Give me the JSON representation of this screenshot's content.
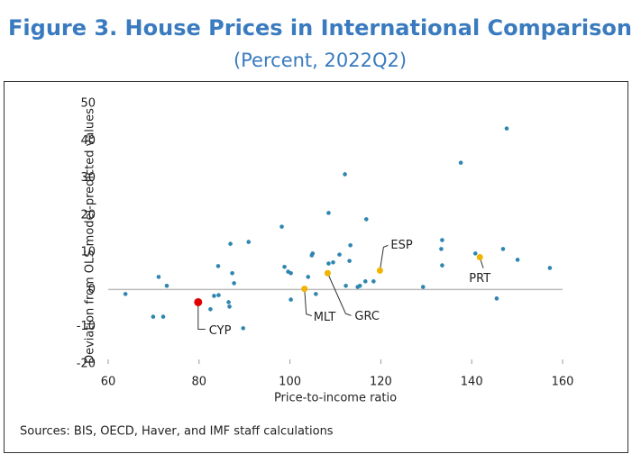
{
  "chart_data": {
    "type": "scatter",
    "title": "Figure 3. House Prices in International Comparison",
    "subtitle": "(Percent, 2022Q2)",
    "xlabel": "Price-to-income ratio",
    "ylabel": "Deviation from OLS model-predicted values",
    "source": "Sources: BIS, OECD, Haver, and IMF staff calculations",
    "xlim": [
      60,
      160
    ],
    "xticks": [
      60,
      80,
      100,
      120,
      140,
      160
    ],
    "ylim": [
      -20,
      50
    ],
    "yticks": [
      -20,
      -10,
      0,
      10,
      20,
      30,
      40,
      50
    ],
    "series": [
      {
        "color": "#2e86b0",
        "x": [
          63.8,
          69.9,
          71.1,
          72.1,
          72.9,
          82.5,
          83.3,
          84.3,
          84.2,
          86.9,
          90.9,
          86.5,
          86.7,
          87.3,
          87.7,
          89.7,
          98.2,
          98.8,
          99.6,
          100.2,
          100.2,
          104.0,
          104.8,
          105.0,
          105.7,
          108.5,
          108.5,
          109.5,
          110.9,
          112.1,
          112.3,
          113.1,
          113.3,
          114.9,
          115.4,
          116.6,
          116.8,
          118.4,
          129.3,
          133.3,
          133.5,
          133.5,
          137.6,
          140.8,
          145.5,
          146.9,
          147.7,
          150.1,
          157.2
        ],
        "values": [
          -1.2,
          -7.3,
          3.4,
          -7.3,
          1.0,
          -5.3,
          -1.7,
          -1.5,
          6.3,
          12.3,
          12.8,
          -3.4,
          -4.6,
          4.4,
          1.7,
          -10.4,
          16.9,
          6.1,
          4.8,
          4.4,
          -2.7,
          3.4,
          9.2,
          9.7,
          -1.2,
          20.6,
          7.0,
          7.3,
          9.4,
          31.0,
          1.0,
          7.7,
          11.9,
          0.7,
          1.0,
          2.2,
          18.9,
          2.2,
          0.7,
          10.9,
          13.3,
          6.5,
          34.1,
          9.7,
          -2.4,
          10.9,
          43.3,
          8.0,
          5.8
        ]
      },
      {
        "color": "#e00000",
        "x": [
          79.8
        ],
        "values": [
          -3.4
        ],
        "labels": [
          "CYP"
        ]
      },
      {
        "color": "#f0b400",
        "x": [
          103.2,
          108.3,
          119.8,
          141.8
        ],
        "values": [
          0.2,
          4.4,
          5.1,
          8.7
        ],
        "labels": [
          "MLT",
          "GRC",
          "ESP",
          "PRT"
        ]
      }
    ]
  }
}
